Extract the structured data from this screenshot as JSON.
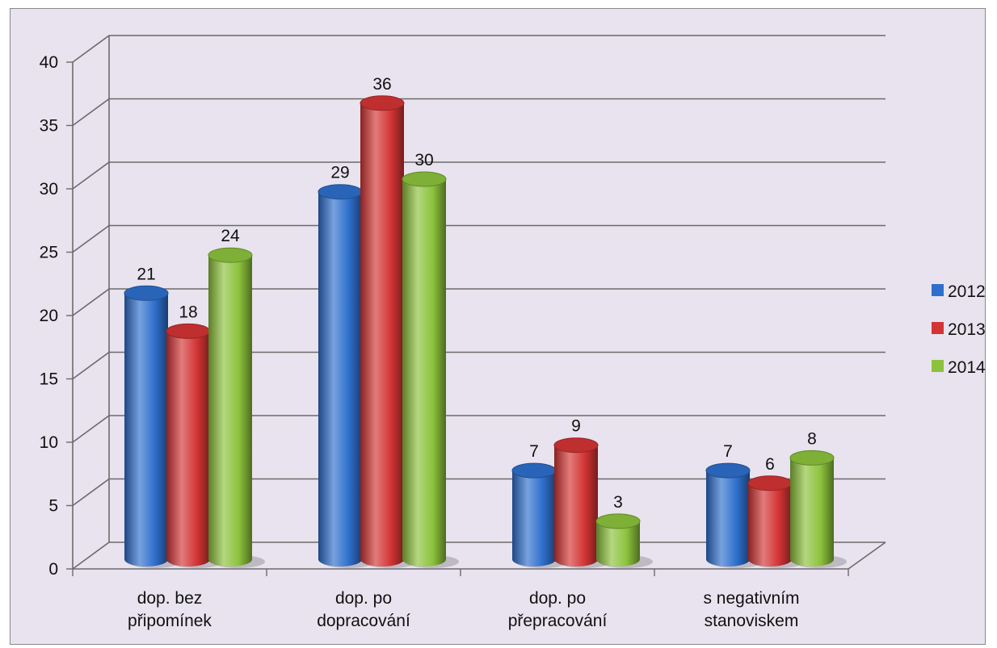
{
  "chart_data": {
    "type": "bar",
    "style": "3d-cylinder",
    "title": "",
    "xlabel": "",
    "ylabel": "",
    "categories": [
      [
        "dop. bez",
        "připomínek"
      ],
      [
        "dop. po",
        "dopracování"
      ],
      [
        "dop. po",
        "přepracování"
      ],
      [
        "s negativním",
        "stanoviskem"
      ]
    ],
    "series": [
      {
        "name": "2012",
        "values": [
          21,
          29,
          7,
          7
        ],
        "color": "#2e6fcc"
      },
      {
        "name": "2013",
        "values": [
          18,
          36,
          9,
          6
        ],
        "color": "#d43434"
      },
      {
        "name": "2014",
        "values": [
          24,
          30,
          3,
          8
        ],
        "color": "#8cc23c"
      }
    ],
    "ylim": [
      0,
      40
    ],
    "yticks": [
      "0",
      "5",
      "10",
      "15",
      "20",
      "25",
      "30",
      "35",
      "40"
    ],
    "grid": true,
    "legend_position": "right",
    "data_labels": true
  }
}
